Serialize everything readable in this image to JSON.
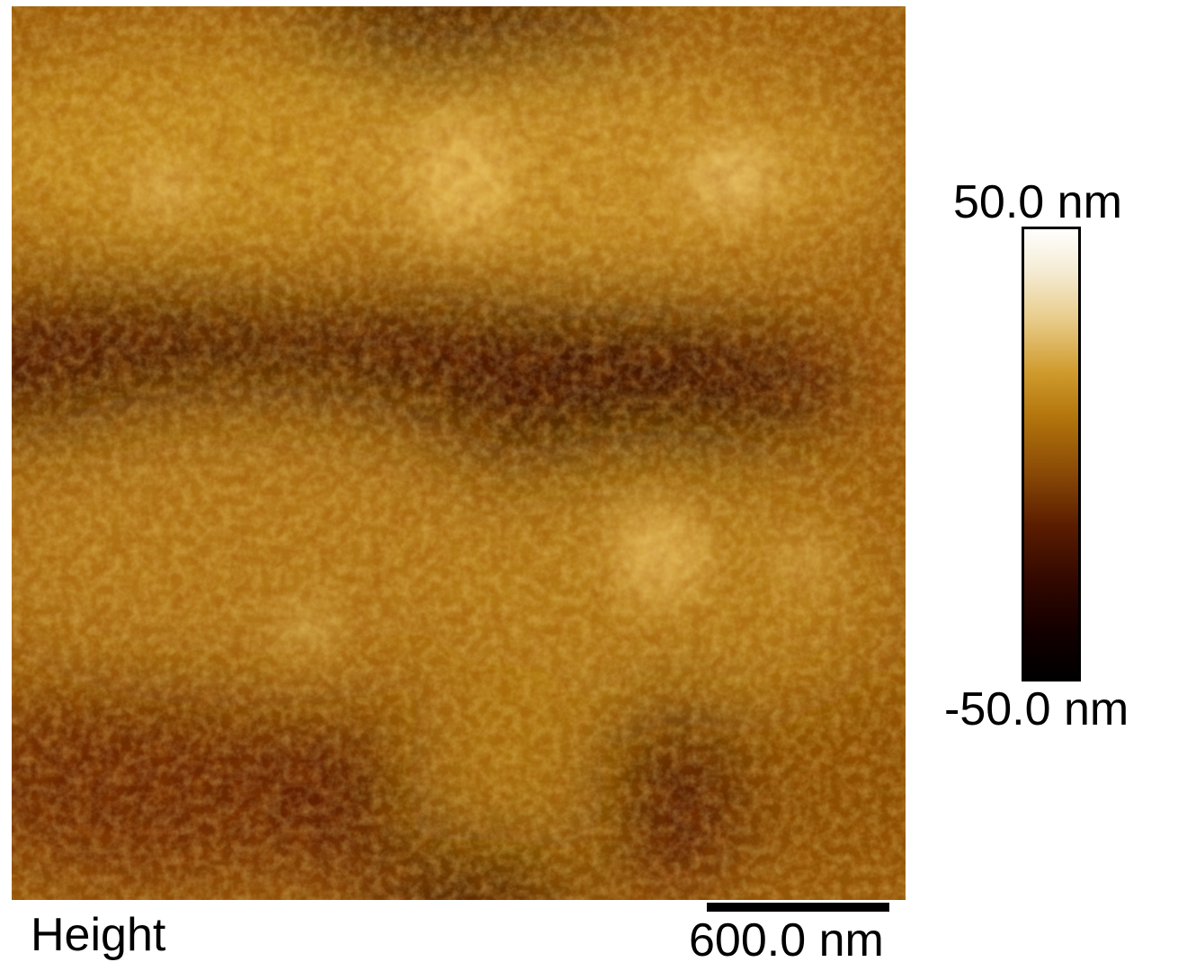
{
  "image": {
    "channel": "Height",
    "scale_bar_label": "600.0 nm"
  },
  "colorbar": {
    "max_label": "50.0 nm",
    "min_label": "-50.0 nm",
    "max_value_nm": 50.0,
    "min_value_nm": -50.0,
    "colormap": [
      "#000000",
      "#320800",
      "#8a4a06",
      "#cf9a2c",
      "#ffffff"
    ]
  }
}
